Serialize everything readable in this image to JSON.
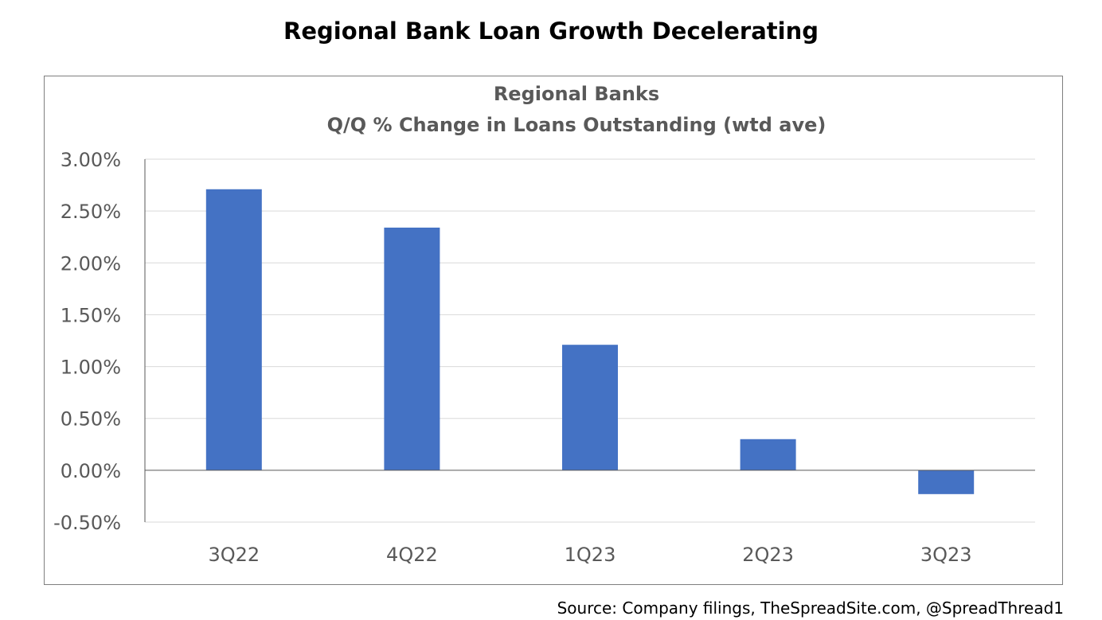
{
  "page": {
    "title": "Regional Bank Loan Growth Decelerating",
    "source": "Source: Company filings, TheSpreadSite.com, @SpreadThread1"
  },
  "colors": {
    "bar": "#4472c4",
    "grid": "#d9d9d9",
    "axis": "#595959",
    "text": "#595959"
  },
  "chart_data": {
    "type": "bar",
    "title": "Regional Banks",
    "subtitle": "Q/Q % Change in Loans Outstanding (wtd ave)",
    "categories": [
      "3Q22",
      "4Q22",
      "1Q23",
      "2Q23",
      "3Q23"
    ],
    "values": [
      2.71,
      2.34,
      1.21,
      0.3,
      -0.23
    ],
    "unit": "%",
    "ylim": [
      -0.5,
      3.0
    ],
    "yticks": [
      3.0,
      2.5,
      2.0,
      1.5,
      1.0,
      0.5,
      0.0,
      -0.5
    ],
    "ytick_labels": [
      "3.00%",
      "2.50%",
      "2.00%",
      "1.50%",
      "1.00%",
      "0.50%",
      "0.00%",
      "-0.50%"
    ],
    "grid": true,
    "legend": "none"
  }
}
